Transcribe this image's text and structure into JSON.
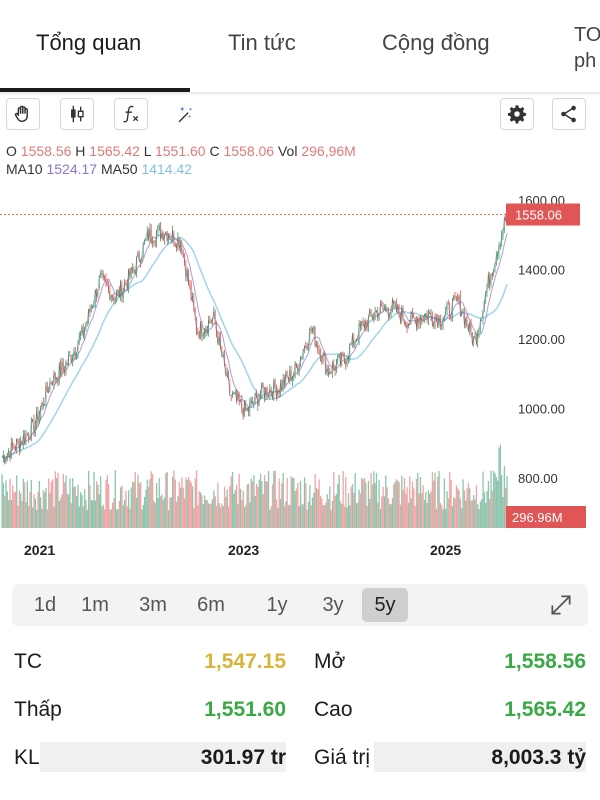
{
  "tabs": [
    {
      "label": "Tổng quan",
      "active": true
    },
    {
      "label": "Tin tức",
      "active": false
    },
    {
      "label": "Cộng đồng",
      "active": false
    },
    {
      "label": "TO\nph",
      "active": false
    }
  ],
  "toolbar": {
    "icons": [
      "hand-icon",
      "candlestick-icon",
      "function-icon",
      "magic-wand-icon",
      "gear-icon",
      "share-icon"
    ]
  },
  "ohlc": {
    "o_label": "O",
    "o": "1558.56",
    "h_label": "H",
    "h": "1565.42",
    "l_label": "L",
    "l": "1551.60",
    "c_label": "C",
    "c": "1558.06",
    "vol_label": "Vol",
    "vol": "296,96M",
    "ma10_label": "MA10",
    "ma10": "1524.17",
    "ma50_label": "MA50",
    "ma50": "1414.42"
  },
  "chart_data": {
    "type": "line",
    "y_ticks": [
      "1600.00",
      "1400.00",
      "1200.00",
      "1000.00",
      "800.00"
    ],
    "y_tick_values": [
      1600,
      1400,
      1200,
      1000,
      800
    ],
    "x_ticks": [
      "2021",
      "2023",
      "2025"
    ],
    "last_price_tag": "1558.06",
    "volume_tag": "296.96M",
    "ylim": [
      720,
      1640
    ],
    "colors": {
      "up": "#3f9c74",
      "down": "#e05555",
      "ma10": "#8a76c9",
      "ma50": "#9fd6ea",
      "price": "#333333"
    },
    "series": [
      {
        "x": [
          "2020-06",
          "2020-08",
          "2020-10",
          "2020-12",
          "2021-02",
          "2021-04",
          "2021-06",
          "2021-08",
          "2021-10",
          "2021-12",
          "2022-02",
          "2022-04",
          "2022-06",
          "2022-08",
          "2022-10",
          "2022-12",
          "2023-02",
          "2023-04",
          "2023-06",
          "2023-08",
          "2023-10",
          "2023-12",
          "2024-02",
          "2024-04",
          "2024-06",
          "2024-08",
          "2024-10",
          "2024-12",
          "2025-02",
          "2025-04",
          "2025-06",
          "2025-08"
        ],
        "values": [
          860,
          900,
          950,
          1080,
          1130,
          1220,
          1370,
          1320,
          1390,
          1500,
          1510,
          1480,
          1220,
          1260,
          1040,
          990,
          1050,
          1060,
          1110,
          1230,
          1110,
          1140,
          1230,
          1280,
          1290,
          1250,
          1270,
          1260,
          1310,
          1190,
          1390,
          1558
        ]
      }
    ]
  },
  "ranges": {
    "options": [
      "1d",
      "1m",
      "3m",
      "6m",
      "1y",
      "3y",
      "5y"
    ],
    "selected": "5y"
  },
  "stats": {
    "tc_label": "TC",
    "tc_value": "1,547.15",
    "open_label": "Mở",
    "open_value": "1,558.56",
    "low_label": "Thấp",
    "low_value": "1,551.60",
    "high_label": "Cao",
    "high_value": "1,565.42",
    "vol_label": "KL",
    "vol_value": "301.97 tr",
    "value_label": "Giá trị",
    "value_value": "8,003.3 tỷ"
  }
}
